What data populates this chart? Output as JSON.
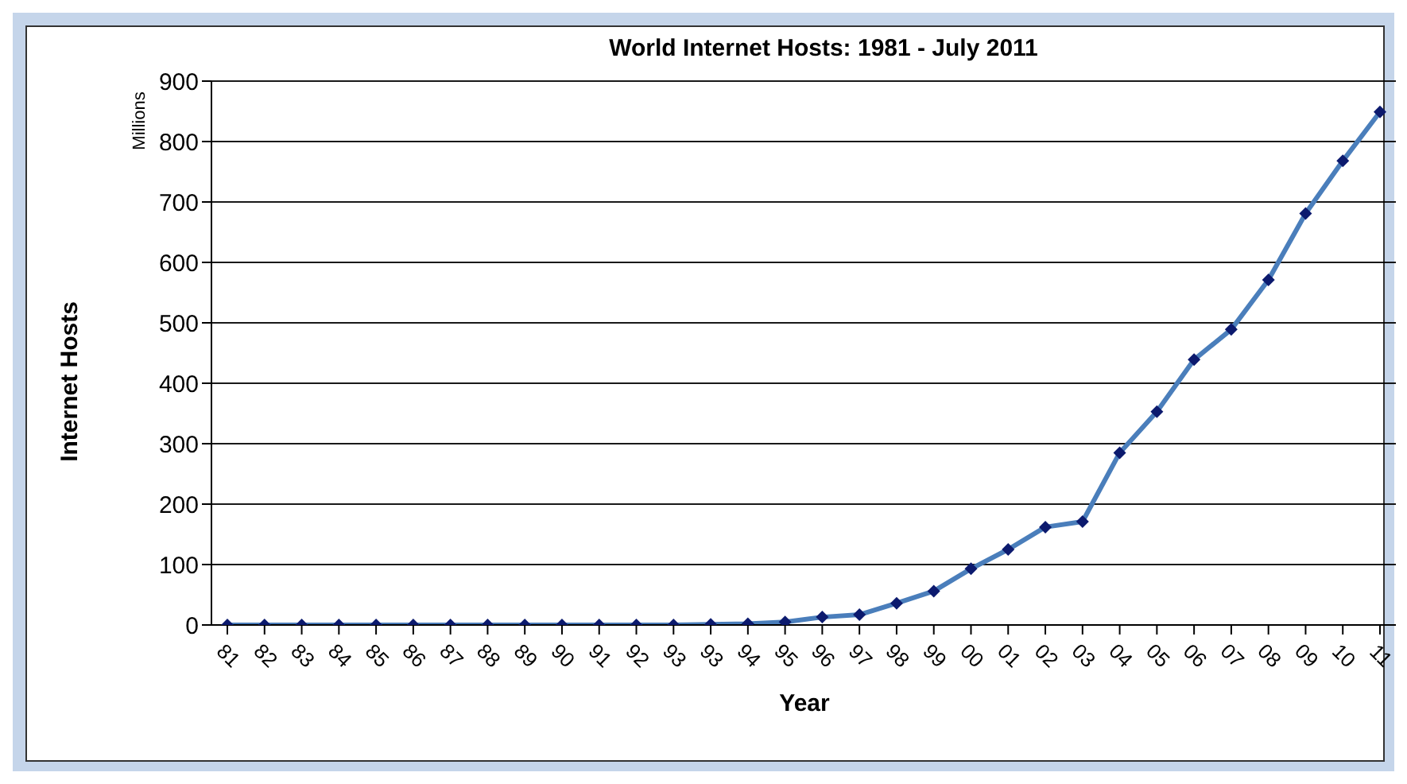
{
  "chart_data": {
    "type": "line",
    "title": "World Internet Hosts: 1981 - July 2011",
    "xlabel": "Year",
    "ylabel": "Internet Hosts",
    "annotations": [
      "Millions"
    ],
    "categories": [
      "81",
      "82",
      "83",
      "84",
      "85",
      "86",
      "87",
      "88",
      "89",
      "90",
      "91",
      "92",
      "93",
      "93",
      "94",
      "95",
      "96",
      "97",
      "98",
      "99",
      "00",
      "01",
      "02",
      "03",
      "04",
      "05",
      "06",
      "07",
      "08",
      "09",
      "10",
      "11"
    ],
    "series": [
      {
        "color": "#4a7ebb",
        "values": [
          0,
          0,
          0,
          0,
          0,
          0,
          0,
          0,
          0,
          0,
          0,
          0,
          0,
          1,
          2,
          5,
          13,
          17,
          36,
          56,
          93,
          125,
          162,
          171,
          285,
          353,
          439,
          489,
          571,
          681,
          768,
          849
        ]
      }
    ],
    "ylim": [
      0,
      900
    ],
    "yticks": [
      0,
      100,
      200,
      300,
      400,
      500,
      600,
      700,
      800,
      900
    ],
    "grid": "y",
    "marker": "diamond",
    "line_style": "solid"
  }
}
